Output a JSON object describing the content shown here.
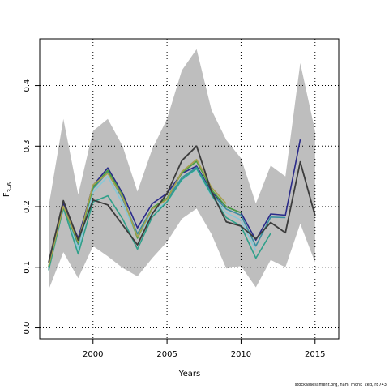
{
  "chart_data": {
    "type": "line",
    "title": "",
    "xlabel": "Years",
    "ylabel": "F",
    "ylabel_sub": "3–6",
    "xlim": [
      1996.4,
      2016.6
    ],
    "ylim": [
      -0.018,
      0.477
    ],
    "x_ticks": [
      2000,
      2005,
      2010,
      2015
    ],
    "y_ticks": [
      0.0,
      0.1,
      0.2,
      0.3,
      0.4
    ],
    "y_tick_labels": [
      "0.0",
      "0.1",
      "0.2",
      "0.3",
      "0.4"
    ],
    "grid": "dotted",
    "legend": "none",
    "confidence_band": {
      "x": [
        1997,
        1998,
        1999,
        2000,
        2001,
        2002,
        2003,
        2004,
        2005,
        2006,
        2007,
        2008,
        2009,
        2010,
        2011,
        2012,
        2013,
        2014,
        2015
      ],
      "upper": [
        0.2,
        0.345,
        0.22,
        0.325,
        0.345,
        0.3,
        0.225,
        0.295,
        0.345,
        0.425,
        0.46,
        0.36,
        0.31,
        0.28,
        0.205,
        0.268,
        0.25,
        0.437,
        0.325
      ],
      "lower": [
        0.063,
        0.125,
        0.082,
        0.135,
        0.118,
        0.099,
        0.085,
        0.115,
        0.142,
        0.18,
        0.197,
        0.155,
        0.098,
        0.102,
        0.067,
        0.112,
        0.1,
        0.172,
        0.108
      ],
      "color": "#bebebe"
    },
    "series": [
      {
        "color": "#2a2a8a",
        "width": 1.6,
        "x": [
          1997,
          1998,
          1999,
          2000,
          2001,
          2002,
          2003,
          2004,
          2005,
          2006,
          2007,
          2008,
          2009,
          2010,
          2011,
          2012,
          2013,
          2014
        ],
        "values": [
          0.098,
          0.205,
          0.148,
          0.235,
          0.264,
          0.222,
          0.165,
          0.205,
          0.222,
          0.255,
          0.267,
          0.225,
          0.2,
          0.19,
          0.145,
          0.188,
          0.186,
          0.311
        ]
      },
      {
        "color": "#3a8fa0",
        "width": 1.6,
        "x": [
          1997,
          1998,
          1999,
          2000,
          2001,
          2002,
          2003,
          2004,
          2005,
          2006,
          2007,
          2008,
          2009,
          2010,
          2011,
          2012,
          2013
        ],
        "values": [
          0.1,
          0.198,
          0.138,
          0.23,
          0.257,
          0.213,
          0.155,
          0.197,
          0.212,
          0.248,
          0.265,
          0.222,
          0.196,
          0.186,
          0.135,
          0.183,
          0.182
        ]
      },
      {
        "color": "#88c8d8",
        "width": 1.6,
        "x": [
          1997,
          1998,
          1999,
          2000,
          2001,
          2002,
          2003,
          2004,
          2005,
          2006,
          2007,
          2008,
          2009,
          2010,
          2011
        ],
        "values": [
          0.098,
          0.196,
          0.13,
          0.224,
          0.25,
          0.205,
          0.15,
          0.19,
          0.208,
          0.244,
          0.262,
          0.218,
          0.19,
          0.178,
          0.128
        ]
      },
      {
        "color": "#2fa08a",
        "width": 1.6,
        "x": [
          1997,
          1998,
          1999,
          2000,
          2001,
          2002,
          2003,
          2004,
          2005,
          2006,
          2007,
          2008,
          2009,
          2010,
          2011,
          2012
        ],
        "values": [
          0.095,
          0.198,
          0.122,
          0.208,
          0.218,
          0.18,
          0.13,
          0.183,
          0.208,
          0.245,
          0.263,
          0.22,
          0.182,
          0.168,
          0.115,
          0.156
        ]
      },
      {
        "color": "#4aa040",
        "width": 1.6,
        "x": [
          1997,
          1998,
          1999,
          2000,
          2001,
          2002,
          2003,
          2004,
          2005,
          2006,
          2007,
          2008,
          2009,
          2010
        ],
        "values": [
          0.101,
          0.2,
          0.14,
          0.232,
          0.26,
          0.218,
          0.148,
          0.198,
          0.214,
          0.256,
          0.275,
          0.228,
          0.2,
          0.19
        ]
      },
      {
        "color": "#a8a050",
        "width": 1.6,
        "x": [
          1997,
          1998,
          1999,
          2000,
          2001,
          2002,
          2003,
          2004,
          2005,
          2006,
          2007,
          2008,
          2009
        ],
        "values": [
          0.102,
          0.201,
          0.142,
          0.236,
          0.255,
          0.216,
          0.15,
          0.196,
          0.212,
          0.258,
          0.278,
          0.232,
          0.205
        ]
      },
      {
        "color": "#3c3c3c",
        "width": 1.8,
        "x": [
          1997,
          1998,
          1999,
          2000,
          2001,
          2002,
          2003,
          2004,
          2005,
          2006,
          2007,
          2008,
          2009,
          2010,
          2011,
          2012,
          2013,
          2014,
          2015
        ],
        "values": [
          0.108,
          0.21,
          0.145,
          0.211,
          0.203,
          0.17,
          0.137,
          0.188,
          0.222,
          0.276,
          0.3,
          0.225,
          0.175,
          0.168,
          0.147,
          0.174,
          0.157,
          0.274,
          0.185
        ]
      }
    ]
  },
  "footer": "stockassessment.org, nam_monk_2ed, r8743"
}
